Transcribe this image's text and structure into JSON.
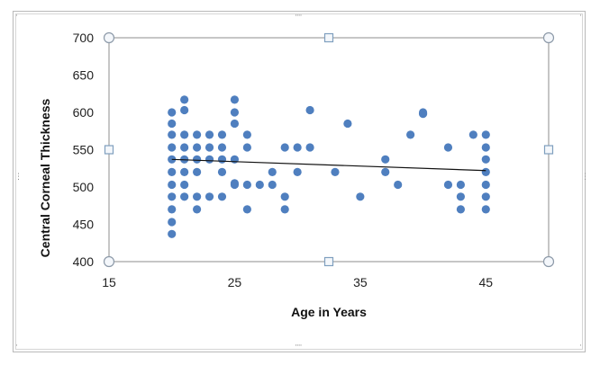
{
  "window": {
    "frame_color": "#b9b9b9",
    "handle_color": "#8a8a8a"
  },
  "chart_data": {
    "type": "scatter",
    "title": "",
    "xlabel": "Age in Years",
    "ylabel": "Central Corneal Thickness",
    "xlim": [
      15,
      50
    ],
    "ylim": [
      400,
      700
    ],
    "xticks": [
      15,
      25,
      35,
      45
    ],
    "yticks": [
      400,
      450,
      500,
      550,
      600,
      650,
      700
    ],
    "grid": false,
    "marker_color": "#4f7fbf",
    "trendline": {
      "x": [
        20,
        45
      ],
      "y": [
        537,
        522
      ],
      "color": "#111111"
    },
    "series": [
      {
        "points": [
          [
            20,
            437
          ],
          [
            20,
            453
          ],
          [
            20,
            470
          ],
          [
            20,
            487
          ],
          [
            20,
            503
          ],
          [
            20,
            520
          ],
          [
            20,
            537
          ],
          [
            20,
            553
          ],
          [
            20,
            570
          ],
          [
            20,
            585
          ],
          [
            20,
            600
          ],
          [
            21,
            487
          ],
          [
            21,
            503
          ],
          [
            21,
            520
          ],
          [
            21,
            537
          ],
          [
            21,
            553
          ],
          [
            21,
            570
          ],
          [
            21,
            603
          ],
          [
            21,
            617
          ],
          [
            22,
            470
          ],
          [
            22,
            487
          ],
          [
            22,
            520
          ],
          [
            22,
            537
          ],
          [
            22,
            553
          ],
          [
            22,
            570
          ],
          [
            23,
            487
          ],
          [
            23,
            537
          ],
          [
            23,
            553
          ],
          [
            23,
            570
          ],
          [
            24,
            487
          ],
          [
            24,
            520
          ],
          [
            24,
            537
          ],
          [
            24,
            553
          ],
          [
            24,
            570
          ],
          [
            25,
            503
          ],
          [
            25,
            505
          ],
          [
            25,
            537
          ],
          [
            25,
            585
          ],
          [
            25,
            600
          ],
          [
            25,
            617
          ],
          [
            26,
            470
          ],
          [
            26,
            503
          ],
          [
            26,
            553
          ],
          [
            26,
            570
          ],
          [
            27,
            503
          ],
          [
            28,
            503
          ],
          [
            28,
            520
          ],
          [
            29,
            470
          ],
          [
            29,
            487
          ],
          [
            29,
            553
          ],
          [
            30,
            520
          ],
          [
            30,
            553
          ],
          [
            31,
            553
          ],
          [
            31,
            603
          ],
          [
            33,
            520
          ],
          [
            34,
            585
          ],
          [
            35,
            487
          ],
          [
            37,
            520
          ],
          [
            37,
            537
          ],
          [
            38,
            503
          ],
          [
            39,
            570
          ],
          [
            40,
            598
          ],
          [
            40,
            600
          ],
          [
            42,
            503
          ],
          [
            42,
            553
          ],
          [
            43,
            470
          ],
          [
            43,
            487
          ],
          [
            43,
            503
          ],
          [
            44,
            570
          ],
          [
            45,
            470
          ],
          [
            45,
            487
          ],
          [
            45,
            503
          ],
          [
            45,
            520
          ],
          [
            45,
            537
          ],
          [
            45,
            553
          ],
          [
            45,
            570
          ]
        ]
      }
    ]
  }
}
